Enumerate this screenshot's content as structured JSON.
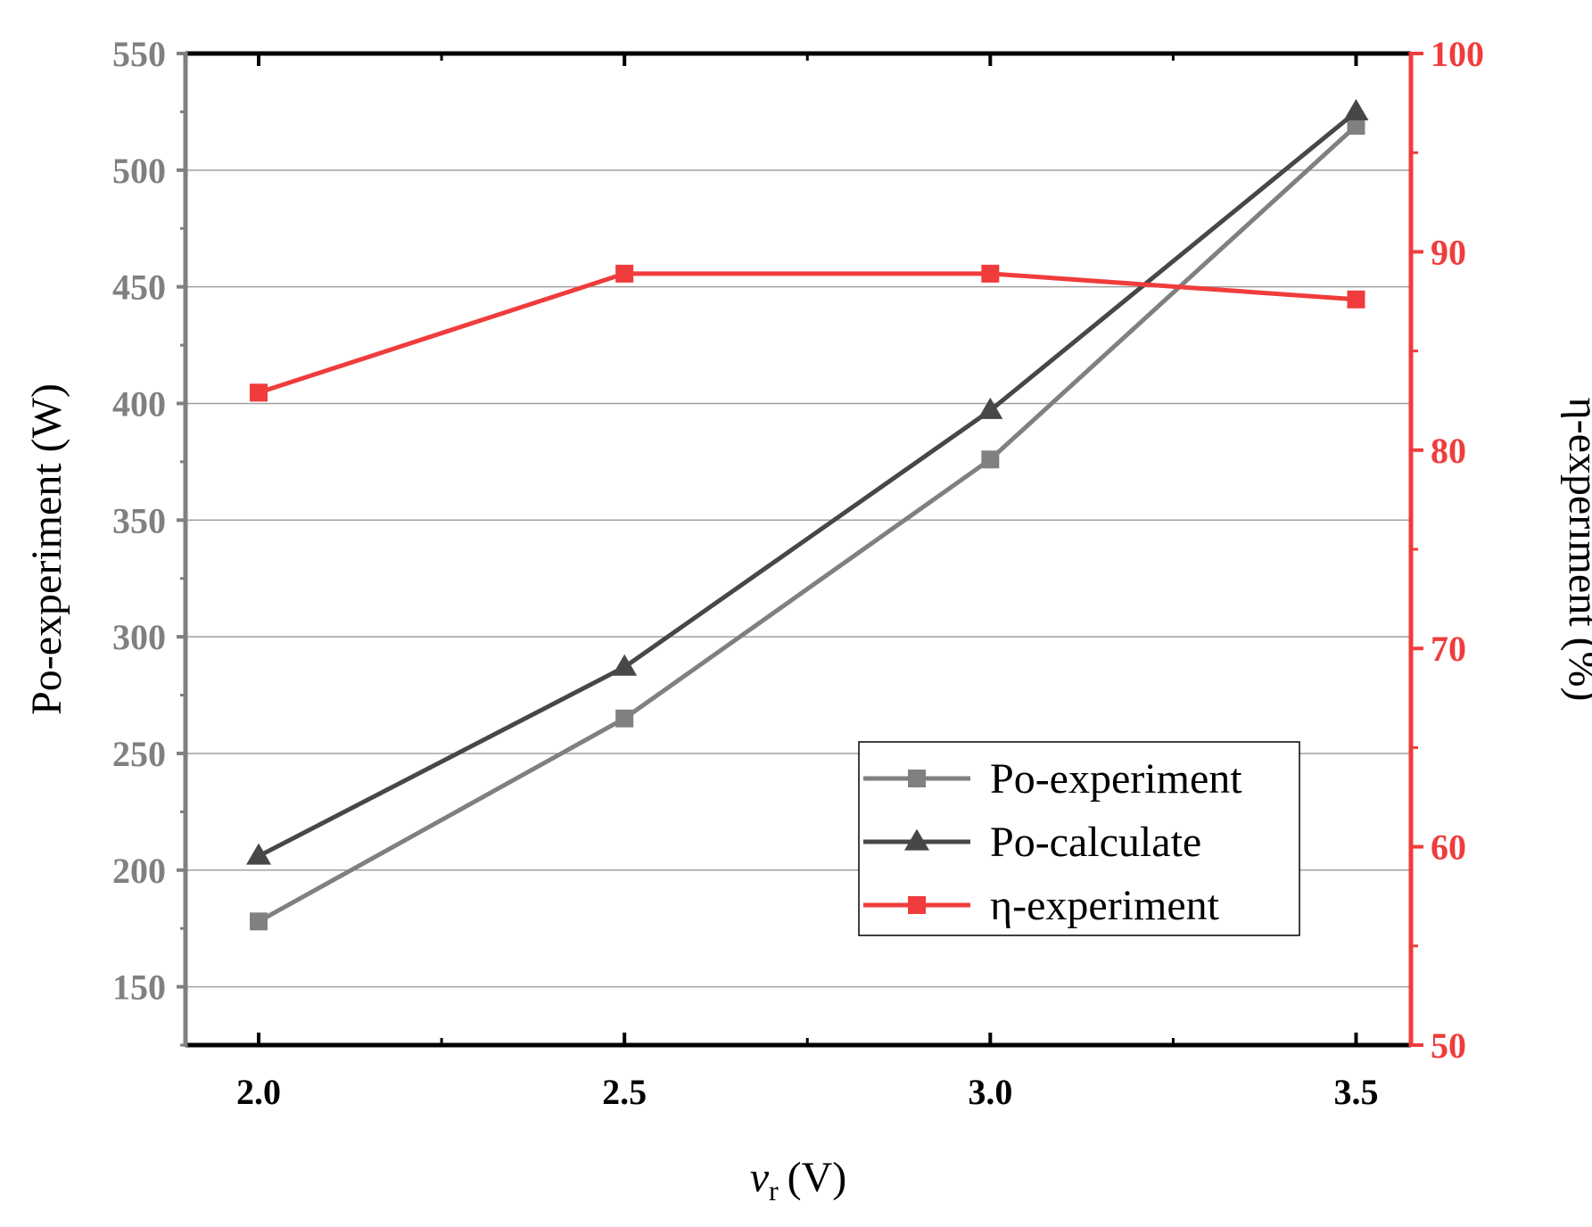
{
  "chart_data": {
    "type": "line",
    "x": [
      2.0,
      2.5,
      3.0,
      3.5
    ],
    "x_tick_labels": [
      "2.0",
      "2.5",
      "3.0",
      "3.5"
    ],
    "xlim": [
      1.9,
      3.575
    ],
    "xlabel_main": "v",
    "xlabel_sub": "r",
    "xlabel_unit": "(V)",
    "left_axis": {
      "label": "Po-experiment (W)",
      "ylim": [
        125,
        550
      ],
      "ticks": [
        150,
        200,
        250,
        300,
        350,
        400,
        450,
        500,
        550
      ],
      "tick_labels": [
        "150",
        "200",
        "250",
        "300",
        "350",
        "400",
        "450",
        "500",
        "550"
      ],
      "color": "#808080"
    },
    "right_axis": {
      "label": "η-experiment (%)",
      "ylim": [
        50,
        100
      ],
      "ticks": [
        50,
        60,
        70,
        80,
        90,
        100
      ],
      "tick_labels": [
        "50",
        "60",
        "70",
        "80",
        "90",
        "100"
      ],
      "color": "#f03c3c"
    },
    "series": [
      {
        "name": "Po-experiment",
        "axis": "left",
        "marker": "square",
        "color": "#808080",
        "values": [
          178,
          265,
          376,
          519
        ]
      },
      {
        "name": "Po-calculate",
        "axis": "left",
        "marker": "triangle",
        "color": "#474747",
        "values": [
          206,
          287,
          397,
          525
        ]
      },
      {
        "name": "η-experiment",
        "axis": "right",
        "marker": "square",
        "color": "#f03c3c",
        "values": [
          82.9,
          88.9,
          88.9,
          87.6
        ]
      }
    ],
    "gridlines": "horizontal",
    "legend_position": "bottom-right"
  }
}
